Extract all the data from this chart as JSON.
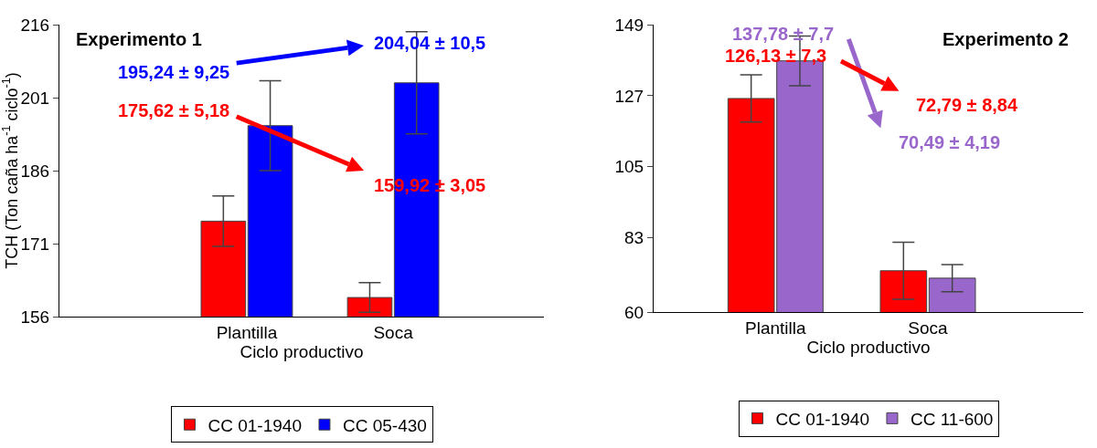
{
  "chart_data": [
    {
      "type": "bar",
      "title": "Experimento 1",
      "xlabel": "Ciclo productivo",
      "ylabel": "TCH (Ton caña ha$^{-1}$ ciclo$^{-1}$)",
      "categories": [
        "Plantilla",
        "Soca"
      ],
      "series": [
        {
          "name": "CC 01-1940",
          "color": "#ff0000",
          "values": [
            175.62,
            159.92
          ],
          "errors": [
            5.18,
            3.05
          ]
        },
        {
          "name": "CC 05-430",
          "color": "#0000ff",
          "values": [
            195.24,
            204.04
          ],
          "errors": [
            9.25,
            10.5
          ]
        }
      ],
      "ylim": [
        156,
        216
      ],
      "yticks": [
        156,
        171,
        186,
        201,
        216
      ],
      "grid": false,
      "legend": "bottom",
      "annotations": [
        "195,24 ± 9,25",
        "175,62 ± 5,18",
        "204,04 ± 10,5",
        "159,92 ± 3,05"
      ]
    },
    {
      "type": "bar",
      "title": "Experimento 2",
      "xlabel": "Ciclo productivo",
      "categories": [
        "Plantilla",
        "Soca"
      ],
      "series": [
        {
          "name": "CC 01-1940",
          "color": "#ff0000",
          "values": [
            126.13,
            72.79
          ],
          "errors": [
            7.3,
            8.84
          ]
        },
        {
          "name": "CC 11-600",
          "color": "#9966cc",
          "values": [
            137.78,
            70.49
          ],
          "errors": [
            7.7,
            4.19
          ]
        }
      ],
      "ylim": [
        60,
        149
      ],
      "yticks": [
        60,
        83,
        105,
        127,
        149
      ],
      "grid": false,
      "legend": "bottom",
      "annotations": [
        "137,78 ± 7,7",
        "126,13 ± 7,3",
        "72,79 ± 8,84",
        "70,49 ± 4,19"
      ]
    }
  ]
}
